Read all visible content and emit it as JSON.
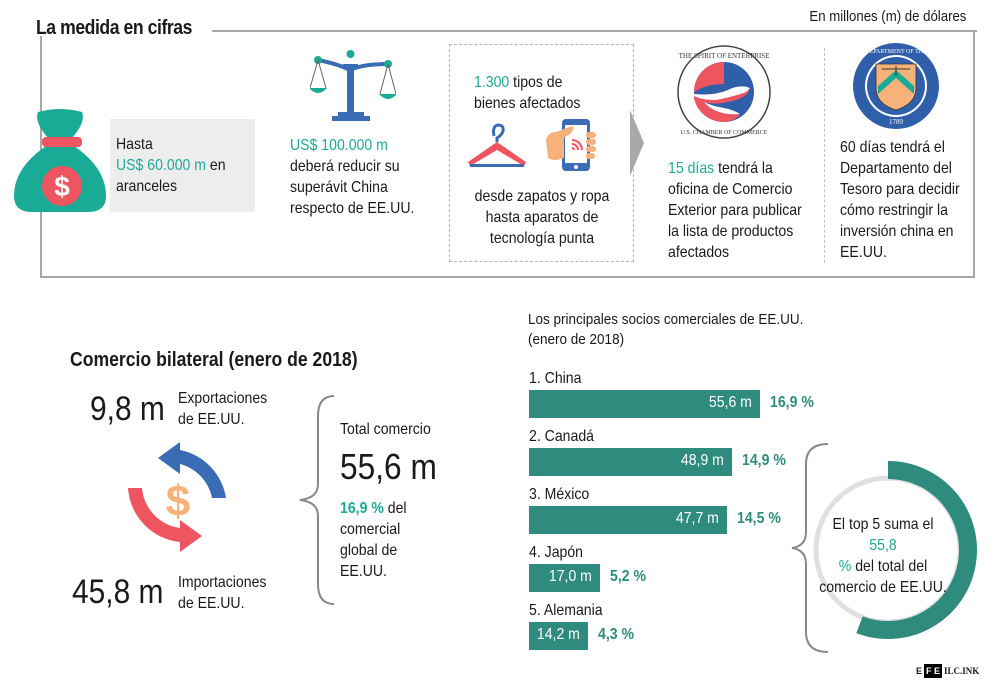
{
  "header": {
    "title": "La medida en cifras",
    "units_note": "En millones (m) de dólares"
  },
  "measures": {
    "tariffs": {
      "line1": "Hasta",
      "amount": "US$ 60.000 m",
      "line2_rest": " en",
      "line3": "aranceles"
    },
    "surplus": {
      "amount": "US$ 100.000 m",
      "text1": "deberá reducir su",
      "text2": "superávit China",
      "text3": "respecto de EE.UU."
    },
    "goods": {
      "amount": "1.300",
      "text1_rest": " tipos de",
      "text2": "bienes afectados",
      "desc1": "desde zapatos y ropa",
      "desc2": "hasta aparatos de",
      "desc3": "tecnología punta"
    },
    "commerce_office": {
      "amount": "15 días",
      "text1_rest": " tendrá la",
      "text2": "oficina de Comercio",
      "text3": "Exterior para publicar",
      "text4": "la lista de productos",
      "text5": "afectados"
    },
    "treasury": {
      "text1": "60 días tendrá el",
      "text2": "Departamento del",
      "text3": "Tesoro para decidir",
      "text4": "cómo restringir la",
      "text5": "inversión china en",
      "text6": "EE.UU."
    },
    "icons": [
      "money-bag-icon",
      "scales-icon",
      "hanger-icon",
      "smartphone-hand-icon",
      "chevron-right-icon",
      "chamber-of-commerce-seal-icon",
      "treasury-seal-icon"
    ]
  },
  "bilateral": {
    "title": "Comercio bilateral (enero de 2018)",
    "exports": {
      "value": "9,8 m",
      "label1": "Exportaciones",
      "label2": "de EE.UU."
    },
    "imports": {
      "value": "45,8 m",
      "label1": "Importaciones",
      "label2": "de EE.UU."
    },
    "total": {
      "label": "Total comercio",
      "value": "55,6 m",
      "pct": "16,9 %",
      "pct_rest": " del",
      "text2": "comercial",
      "text3": "global de",
      "text4": "EE.UU."
    }
  },
  "top5": {
    "text1": "El top 5 suma el ",
    "pct1": "55,8",
    "pct2": "%",
    "text2": " del total del",
    "text3": "comercio de EE.UU.",
    "share": 55.8
  },
  "colors": {
    "teal": "#1aab96",
    "bar": "#2e8b7e",
    "red": "#ef5461",
    "blue": "#3a6bb5",
    "orange": "#f6b27a",
    "gray": "#a8a8a8"
  },
  "credit": {
    "efe_e1": "E",
    "efe_box": "F E",
    "ilc": "ILC.INK"
  },
  "chart_data": {
    "type": "bar",
    "title": "Los principales socios comerciales de EE.UU.",
    "subtitle": "(enero de 2018)",
    "xlabel": "",
    "ylabel": "",
    "units": "millones de dólares",
    "categories": [
      "1. China",
      "2. Canadá",
      "3. México",
      "4. Japón",
      "5. Alemania"
    ],
    "values": [
      55.6,
      48.9,
      47.7,
      17.0,
      14.2
    ],
    "value_labels": [
      "55,6 m",
      "48,9 m",
      "47,7 m",
      "17,0 m",
      "14,2 m"
    ],
    "pct_labels": [
      "16,9 %",
      "14,9 %",
      "14,5 %",
      "5,2 %",
      "4,3 %"
    ],
    "percentages": [
      16.9,
      14.9,
      14.5,
      5.2,
      4.3
    ],
    "xlim": [
      0,
      55.6
    ],
    "orientation": "horizontal",
    "grid": false
  }
}
